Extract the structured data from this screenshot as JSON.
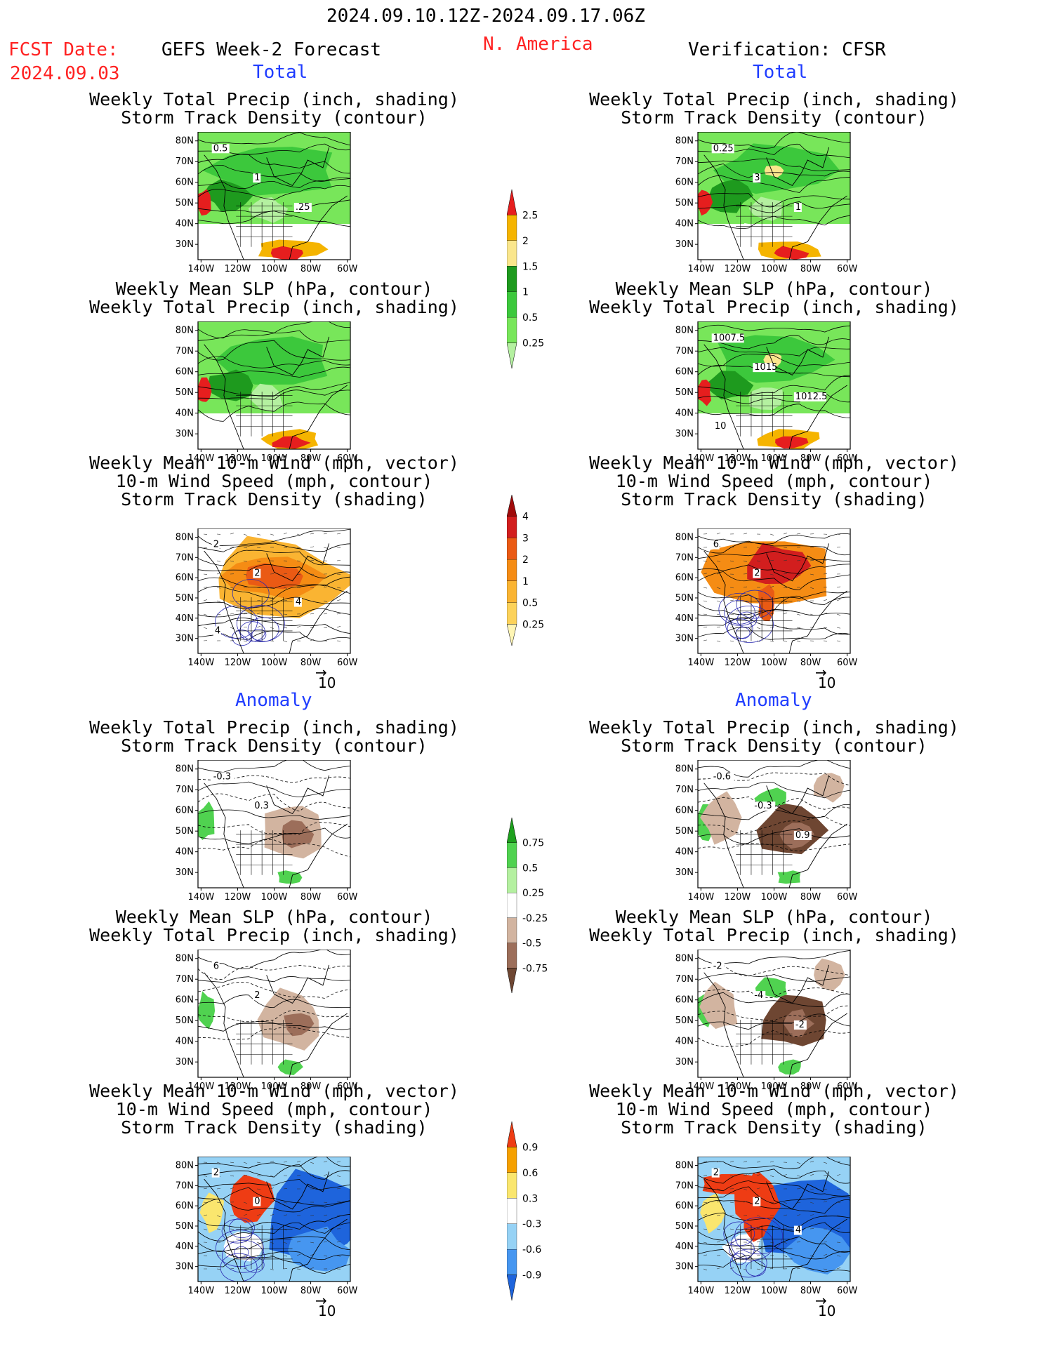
{
  "header": {
    "date_range": "2024.09.10.12Z-2024.09.17.06Z",
    "fcst_label": "FCST Date:",
    "fcst_date": "2024.09.03",
    "model": "GEFS Week-2 Forecast",
    "region": "N. America",
    "verification": "Verification: CFSR"
  },
  "sections": {
    "total": "Total",
    "anomaly": "Anomaly"
  },
  "panel_titles": {
    "precip_storm": [
      "Weekly Total Precip (inch, shading)",
      "Storm Track Density (contour)"
    ],
    "slp_precip": [
      "Weekly Mean SLP (hPa, contour)",
      "Weekly Total Precip (inch, shading)"
    ],
    "wind_storm": [
      "Weekly Mean 10-m Wind (mph, vector)",
      "10-m Wind Speed (mph, contour)",
      "Storm Track Density (shading)"
    ]
  },
  "axes": {
    "lat_ticks": [
      "80N",
      "70N",
      "60N",
      "50N",
      "40N",
      "30N"
    ],
    "lon_ticks": [
      "140W",
      "120W",
      "100W",
      "80W",
      "60W"
    ],
    "vector_ref": "10"
  },
  "colors": {
    "precip_total": [
      "#b4f0a0",
      "#78e65a",
      "#3cc83c",
      "#1e9a1e",
      "#fae68c",
      "#f5b400",
      "#e61e1e"
    ],
    "storm_total": [
      "#fff5b4",
      "#fcd25a",
      "#fab432",
      "#f58c14",
      "#ea5a14",
      "#d21e1e",
      "#a00a0a"
    ],
    "precip_anom": [
      "#6e4632",
      "#9c6e5a",
      "#d2b4a0",
      "#ffffff",
      "#b4f0a0",
      "#50d250",
      "#1ea01e"
    ],
    "storm_anom": [
      "#1e64dc",
      "#4696f0",
      "#96d2f5",
      "#ffffff",
      "#fae66e",
      "#f5a000",
      "#ee3c14"
    ]
  },
  "chart_data": [
    {
      "type": "heatmap",
      "panel": "forecast-total-precip-storm",
      "title": "Weekly Total Precip (inch, shading)",
      "subtitle": "Storm Track Density (contour)",
      "contour_labels": [
        "0.5",
        "1",
        ".25"
      ]
    },
    {
      "type": "heatmap",
      "panel": "forecast-total-slp-precip",
      "title": "Weekly Mean SLP (hPa, contour)",
      "subtitle": "Weekly Total Precip (inch, shading)"
    },
    {
      "type": "heatmap",
      "panel": "forecast-total-wind-storm",
      "title": "Weekly Mean 10-m Wind (mph, vector)",
      "subtitle": "Storm Track Density (shading)",
      "contour_labels": [
        "2",
        "2",
        "4",
        "4"
      ]
    },
    {
      "type": "heatmap",
      "panel": "verif-total-precip-storm",
      "title": "Weekly Total Precip (inch, shading)",
      "subtitle": "Storm Track Density (contour)",
      "contour_labels": [
        "0.25",
        "3",
        "1"
      ]
    },
    {
      "type": "heatmap",
      "panel": "verif-total-slp-precip",
      "title": "Weekly Mean SLP (hPa, contour)",
      "subtitle": "Weekly Total Precip (inch, shading)",
      "contour_labels": [
        "1007.5",
        "1015",
        "1012.5",
        "10"
      ]
    },
    {
      "type": "heatmap",
      "panel": "verif-total-wind-storm",
      "title": "Weekly Mean 10-m Wind (mph, vector)",
      "subtitle": "Storm Track Density (shading)",
      "contour_labels": [
        "6",
        "2"
      ]
    },
    {
      "type": "heatmap",
      "panel": "forecast-anom-precip-storm",
      "title": "Weekly Total Precip (inch, shading)",
      "subtitle": "Storm Track Density (contour)",
      "contour_labels": [
        "-0.3",
        "0.3"
      ]
    },
    {
      "type": "heatmap",
      "panel": "forecast-anom-slp-precip",
      "title": "Weekly Mean SLP (hPa, contour)",
      "subtitle": "Weekly Total Precip (inch, shading)",
      "contour_labels": [
        "6",
        "2"
      ]
    },
    {
      "type": "heatmap",
      "panel": "forecast-anom-wind-storm",
      "title": "Weekly Mean 10-m Wind (mph, vector)",
      "subtitle": "Storm Track Density (shading)",
      "contour_labels": [
        "2",
        "0"
      ]
    },
    {
      "type": "heatmap",
      "panel": "verif-anom-precip-storm",
      "title": "Weekly Total Precip (inch, shading)",
      "subtitle": "Storm Track Density (contour)",
      "contour_labels": [
        "-0.6",
        "-0.3",
        "0.9"
      ]
    },
    {
      "type": "heatmap",
      "panel": "verif-anom-slp-precip",
      "title": "Weekly Mean SLP (hPa, contour)",
      "subtitle": "Weekly Total Precip (inch, shading)",
      "contour_labels": [
        "-2",
        "-4",
        "-2"
      ]
    },
    {
      "type": "heatmap",
      "panel": "verif-anom-wind-storm",
      "title": "Weekly Mean 10-m Wind (mph, vector)",
      "subtitle": "Storm Track Density (shading)",
      "contour_labels": [
        "2",
        "2",
        "4"
      ]
    }
  ],
  "colorbars": [
    {
      "name": "precip-total-colorbar",
      "labels": [
        "2.5",
        "2",
        "1.5",
        "1",
        "0.5",
        "0.25"
      ]
    },
    {
      "name": "storm-total-colorbar",
      "labels": [
        "4",
        "3",
        "2",
        "1",
        "0.5",
        "0.25"
      ]
    },
    {
      "name": "precip-anom-colorbar",
      "labels": [
        "0.75",
        "0.5",
        "0.25",
        "-0.25",
        "-0.5",
        "-0.75"
      ]
    },
    {
      "name": "storm-anom-colorbar",
      "labels": [
        "0.9",
        "0.6",
        "0.3",
        "-0.3",
        "-0.6",
        "-0.9"
      ]
    }
  ]
}
